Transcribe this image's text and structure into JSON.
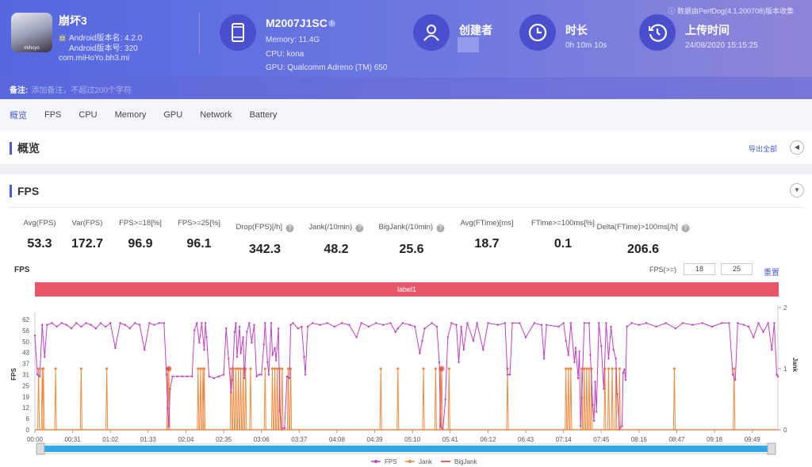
{
  "app": {
    "name": "崩坏3",
    "version_name": "Android版本名: 4.2.0",
    "version_code": "Android版本号: 320",
    "package": "com.miHoYo.bh3.mi",
    "icon_text": "mihoyo"
  },
  "device": {
    "model": "M2007J1SC",
    "memory": "Memory: 11.4G",
    "cpu": "CPU: kona",
    "gpu": "GPU: Qualcomm Adreno (TM) 650"
  },
  "creator": {
    "label": "创建者"
  },
  "duration": {
    "label": "时长",
    "value": "0h 10m 10s"
  },
  "upload": {
    "label": "上传时间",
    "value": "24/08/2020 15:15:25"
  },
  "source_note": "ⓘ 数据由PerfDog(4.1.200708)版本收集",
  "remark": {
    "label": "备注:",
    "placeholder": "添加备注，不超过200个字符"
  },
  "tabs": [
    "概览",
    "FPS",
    "CPU",
    "Memory",
    "GPU",
    "Network",
    "Battery"
  ],
  "overview": {
    "title": "概览",
    "export": "导出全部"
  },
  "fps_section": {
    "title": "FPS"
  },
  "metrics": [
    {
      "label": "Avg(FPS)",
      "value": "53.3",
      "help": false
    },
    {
      "label": "Var(FPS)",
      "value": "172.7",
      "help": false
    },
    {
      "label": "FPS>=18[%]",
      "value": "96.9",
      "help": false
    },
    {
      "label": "FPS>=25[%]",
      "value": "96.1",
      "help": false
    },
    {
      "label": "Drop(FPS)[/h]",
      "value": "342.3",
      "help": true
    },
    {
      "label": "Jank(/10min)",
      "value": "48.2",
      "help": true
    },
    {
      "label": "BigJank(/10min)",
      "value": "25.6",
      "help": true
    },
    {
      "label": "Avg(FTime)[ms]",
      "value": "18.7",
      "help": false
    },
    {
      "label": "FTime>=100ms[%]",
      "value": "0.1",
      "help": false
    },
    {
      "label": "Delta(FTime)>100ms[/h]",
      "value": "206.6",
      "help": true
    }
  ],
  "chart_header": {
    "title": "FPS",
    "threshold_label": "FPS(>=)",
    "threshold1": "18",
    "threshold2": "25",
    "reset": "重置",
    "label_bar": "label1"
  },
  "colors": {
    "fps": "#c040c0",
    "jank": "#f08a40",
    "bigjank": "#e03030",
    "label": "#e8566a",
    "accent": "#4a5bd8"
  },
  "chart_data": {
    "type": "line",
    "ylabel": "FPS",
    "y2label": "Jank",
    "ylim": [
      0,
      62
    ],
    "y2lim": [
      0,
      2
    ],
    "xlim_seconds": [
      0,
      610
    ],
    "yticks": [
      "0",
      "6",
      "12",
      "19",
      "25",
      "31",
      "37",
      "43",
      "50",
      "56",
      "62"
    ],
    "y2ticks": [
      "0",
      "1",
      "2"
    ],
    "xticks": [
      "00:00",
      "00:31",
      "01:02",
      "01:33",
      "02:04",
      "02:35",
      "03:06",
      "03:37",
      "04:08",
      "04:39",
      "05:10",
      "05:41",
      "06:12",
      "06:43",
      "07:14",
      "07:45",
      "08:16",
      "08:47",
      "09:18",
      "09:49"
    ],
    "legend": [
      "FPS",
      "Jank",
      "BigJank"
    ],
    "fps": [
      [
        0,
        53
      ],
      [
        2,
        31
      ],
      [
        4,
        30
      ],
      [
        6,
        59
      ],
      [
        8,
        41
      ],
      [
        10,
        59
      ],
      [
        14,
        60
      ],
      [
        18,
        58
      ],
      [
        22,
        60
      ],
      [
        26,
        59
      ],
      [
        30,
        57
      ],
      [
        34,
        60
      ],
      [
        38,
        58
      ],
      [
        42,
        60
      ],
      [
        46,
        59
      ],
      [
        50,
        57
      ],
      [
        54,
        60
      ],
      [
        58,
        58
      ],
      [
        62,
        60
      ],
      [
        66,
        46
      ],
      [
        70,
        60
      ],
      [
        74,
        59
      ],
      [
        78,
        57
      ],
      [
        82,
        60
      ],
      [
        86,
        59
      ],
      [
        90,
        45
      ],
      [
        94,
        60
      ],
      [
        98,
        59
      ],
      [
        102,
        60
      ],
      [
        106,
        60
      ],
      [
        108,
        31
      ],
      [
        109,
        12
      ],
      [
        110,
        2
      ],
      [
        111,
        23
      ],
      [
        113,
        30
      ],
      [
        117,
        30
      ],
      [
        121,
        30
      ],
      [
        125,
        30
      ],
      [
        129,
        30
      ],
      [
        131,
        56
      ],
      [
        133,
        60
      ],
      [
        135,
        49
      ],
      [
        137,
        60
      ],
      [
        139,
        45
      ],
      [
        140,
        60
      ],
      [
        141,
        52
      ],
      [
        143,
        30
      ],
      [
        147,
        29
      ],
      [
        151,
        30
      ],
      [
        155,
        31
      ],
      [
        157,
        57
      ],
      [
        159,
        40
      ],
      [
        161,
        21
      ],
      [
        162,
        28
      ],
      [
        164,
        55
      ],
      [
        165,
        60
      ],
      [
        166,
        41
      ],
      [
        168,
        58
      ],
      [
        169,
        43
      ],
      [
        171,
        52
      ],
      [
        172,
        29
      ],
      [
        174,
        55
      ],
      [
        176,
        60
      ],
      [
        178,
        49
      ],
      [
        180,
        59
      ],
      [
        182,
        30
      ],
      [
        184,
        31
      ],
      [
        186,
        31
      ],
      [
        188,
        48
      ],
      [
        189,
        60
      ],
      [
        191,
        38
      ],
      [
        192,
        31
      ],
      [
        194,
        60
      ],
      [
        195,
        42
      ],
      [
        197,
        46
      ],
      [
        198,
        39
      ],
      [
        200,
        57
      ],
      [
        201,
        11
      ],
      [
        203,
        0
      ],
      [
        205,
        1
      ],
      [
        207,
        30
      ],
      [
        209,
        29
      ],
      [
        210,
        59
      ],
      [
        212,
        60
      ],
      [
        216,
        57
      ],
      [
        219,
        58
      ],
      [
        221,
        41
      ],
      [
        222,
        31
      ],
      [
        224,
        58
      ],
      [
        228,
        60
      ],
      [
        234,
        59
      ],
      [
        240,
        60
      ],
      [
        246,
        58
      ],
      [
        252,
        60
      ],
      [
        258,
        59
      ],
      [
        264,
        52
      ],
      [
        268,
        60
      ],
      [
        274,
        58
      ],
      [
        280,
        60
      ],
      [
        286,
        59
      ],
      [
        292,
        60
      ],
      [
        296,
        55
      ],
      [
        298,
        57
      ],
      [
        302,
        60
      ],
      [
        308,
        59
      ],
      [
        312,
        58
      ],
      [
        316,
        43
      ],
      [
        318,
        50
      ],
      [
        320,
        57
      ],
      [
        326,
        60
      ],
      [
        330,
        58
      ],
      [
        332,
        38
      ],
      [
        333,
        2
      ],
      [
        335,
        0
      ],
      [
        337,
        17
      ],
      [
        339,
        52
      ],
      [
        342,
        60
      ],
      [
        346,
        59
      ],
      [
        348,
        38
      ],
      [
        350,
        58
      ],
      [
        352,
        45
      ],
      [
        355,
        60
      ],
      [
        360,
        50
      ],
      [
        363,
        60
      ],
      [
        368,
        45
      ],
      [
        372,
        60
      ],
      [
        380,
        59
      ],
      [
        386,
        60
      ],
      [
        388,
        31
      ],
      [
        390,
        31
      ],
      [
        392,
        60
      ],
      [
        398,
        60
      ],
      [
        403,
        52
      ],
      [
        410,
        60
      ],
      [
        416,
        59
      ],
      [
        418,
        40
      ],
      [
        420,
        59
      ],
      [
        430,
        58
      ],
      [
        434,
        60
      ],
      [
        436,
        50
      ],
      [
        438,
        42
      ],
      [
        440,
        60
      ],
      [
        443,
        38
      ],
      [
        444,
        46
      ],
      [
        446,
        29
      ],
      [
        447,
        44
      ],
      [
        448,
        2
      ],
      [
        449,
        18
      ],
      [
        451,
        60
      ],
      [
        455,
        60
      ],
      [
        456,
        42
      ],
      [
        458,
        14
      ],
      [
        459,
        5
      ],
      [
        460,
        27
      ],
      [
        461,
        10
      ],
      [
        463,
        60
      ],
      [
        465,
        47
      ],
      [
        467,
        23
      ],
      [
        469,
        60
      ],
      [
        471,
        40
      ],
      [
        473,
        58
      ],
      [
        475,
        45
      ],
      [
        477,
        40
      ],
      [
        478,
        20
      ],
      [
        480,
        0
      ],
      [
        482,
        2
      ],
      [
        483,
        32
      ],
      [
        484,
        34
      ],
      [
        485,
        28
      ],
      [
        486,
        58
      ],
      [
        490,
        60
      ],
      [
        496,
        59
      ],
      [
        502,
        60
      ],
      [
        510,
        58
      ],
      [
        518,
        60
      ],
      [
        526,
        57
      ],
      [
        532,
        60
      ],
      [
        540,
        59
      ],
      [
        548,
        60
      ],
      [
        556,
        58
      ],
      [
        564,
        60
      ],
      [
        570,
        60
      ],
      [
        573,
        31
      ],
      [
        575,
        28
      ],
      [
        577,
        60
      ],
      [
        582,
        59
      ],
      [
        586,
        58
      ],
      [
        590,
        52
      ],
      [
        594,
        60
      ],
      [
        598,
        55
      ],
      [
        602,
        60
      ],
      [
        605,
        45
      ],
      [
        607,
        60
      ],
      [
        609,
        31
      ],
      [
        610,
        30
      ]
    ],
    "jank_times": [
      3,
      6,
      7,
      17,
      38,
      59,
      109,
      110,
      134,
      136,
      138,
      139,
      161,
      163,
      165,
      167,
      169,
      171,
      173,
      177,
      189,
      195,
      197,
      199,
      201,
      203,
      208,
      210,
      284,
      298,
      319,
      329,
      333,
      334,
      340,
      388,
      436,
      438,
      440,
      449,
      451,
      453,
      455,
      457,
      468,
      471,
      474,
      477,
      480,
      525,
      574
    ],
    "bigjank_times": [
      110,
      334
    ]
  }
}
